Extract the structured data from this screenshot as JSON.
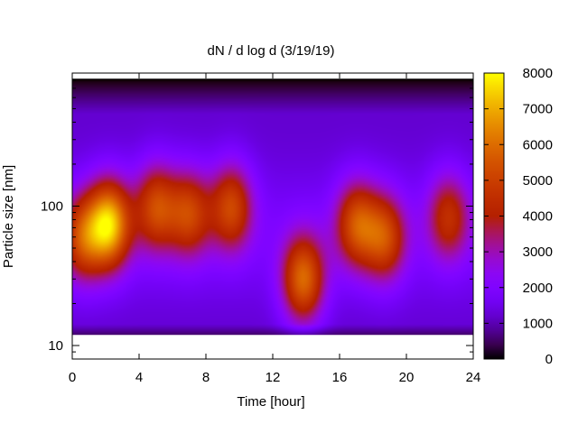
{
  "chart_data": {
    "type": "heatmap",
    "title": "dN / d log d (3/19/19)",
    "xlabel": "Time [hour]",
    "ylabel": "Particle size [nm]",
    "xlim": [
      0,
      24
    ],
    "ylim": [
      8,
      900
    ],
    "y_scale": "log",
    "data_y_range": [
      12,
      820
    ],
    "x_ticks": [
      0,
      4,
      8,
      12,
      16,
      20,
      24
    ],
    "x_tick_labels": [
      "0",
      "4",
      "8",
      "12",
      "16",
      "20",
      "24"
    ],
    "y_ticks": [
      10,
      100
    ],
    "y_tick_labels": [
      "10",
      "100"
    ],
    "colorbar": {
      "min": 0,
      "max": 8000,
      "ticks": [
        0,
        1000,
        2000,
        3000,
        4000,
        5000,
        6000,
        7000,
        8000
      ],
      "tick_labels": [
        "0",
        "1000",
        "2000",
        "3000",
        "4000",
        "5000",
        "6000",
        "7000",
        "8000"
      ],
      "colormap": "gnuplot-pm3d",
      "colors": [
        "#000000",
        "#3b0a6e",
        "#8a16ff",
        "#b83cb4",
        "#c1361f",
        "#d45a00",
        "#e88f00",
        "#ffe51a",
        "#ffff00"
      ]
    },
    "background_level": 1200,
    "hotspots": [
      {
        "time": 0.6,
        "size_nm": 60,
        "peak": 4600
      },
      {
        "time": 2.2,
        "size_nm": 75,
        "peak": 6800
      },
      {
        "time": 5.0,
        "size_nm": 100,
        "peak": 4700
      },
      {
        "time": 7.0,
        "size_nm": 90,
        "peak": 4500
      },
      {
        "time": 9.5,
        "size_nm": 100,
        "peak": 4700
      },
      {
        "time": 13.8,
        "size_nm": 30,
        "peak": 5600
      },
      {
        "time": 17.0,
        "size_nm": 75,
        "peak": 4800
      },
      {
        "time": 18.7,
        "size_nm": 60,
        "peak": 4600
      },
      {
        "time": 22.5,
        "size_nm": 85,
        "peak": 4000
      }
    ]
  }
}
